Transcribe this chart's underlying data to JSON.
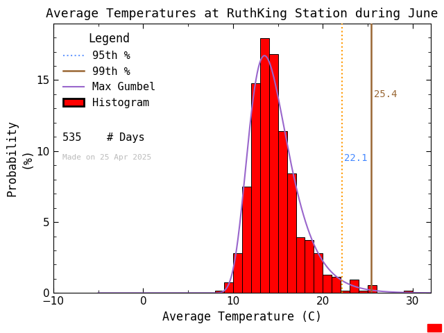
{
  "title": "Average Temperatures at RuthKing Station during June",
  "xlabel": "Average Temperature (C)",
  "ylabel": "Probability\n(%)",
  "xlim": [
    -10,
    32
  ],
  "ylim": [
    0,
    19
  ],
  "xticks": [
    -10,
    0,
    10,
    20,
    30
  ],
  "yticks": [
    0,
    5,
    10,
    15
  ],
  "bin_edges": [
    8,
    9,
    10,
    11,
    12,
    13,
    14,
    15,
    16,
    17,
    18,
    19,
    20,
    21,
    22,
    23,
    24,
    25,
    26,
    27,
    28,
    29,
    30
  ],
  "bin_heights": [
    0.19,
    0.75,
    2.8,
    7.48,
    14.77,
    17.94,
    16.82,
    11.4,
    8.41,
    3.93,
    3.74,
    2.8,
    1.31,
    1.12,
    0.19,
    0.93,
    0.19,
    0.56,
    0.0,
    0.0,
    0.0,
    0.19
  ],
  "gumbel_mu": 13.5,
  "gumbel_beta": 2.2,
  "p95": 22.1,
  "p99": 25.4,
  "n_days": 535,
  "made_on": "Made on 25 Apr 2025",
  "hist_color": "#ff0000",
  "hist_edgecolor": "#000000",
  "gumbel_color": "#9966cc",
  "p95_color": "#ff9900",
  "p95_label_color": "#4488ff",
  "p99_color": "#996633",
  "legend_title": "Legend",
  "bg_color": "#ffffff",
  "title_fontsize": 13,
  "axis_fontsize": 12,
  "tick_fontsize": 11,
  "legend_fontsize": 11,
  "font_family": "monospace"
}
